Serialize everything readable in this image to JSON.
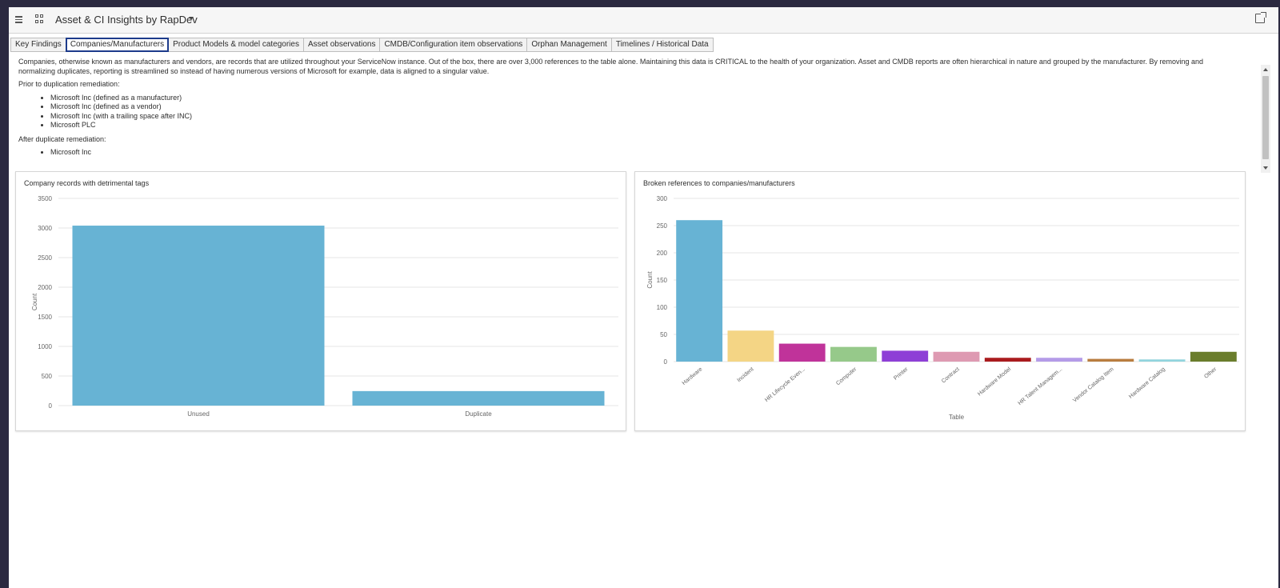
{
  "header": {
    "app_title": "Asset & CI Insights by RapDev"
  },
  "tabs": [
    {
      "label": "Key Findings",
      "active": false
    },
    {
      "label": "Companies/Manufacturers",
      "active": true
    },
    {
      "label": "Product Models & model categories",
      "active": false
    },
    {
      "label": "Asset observations",
      "active": false
    },
    {
      "label": "CMDB/Configuration item observations",
      "active": false
    },
    {
      "label": "Orphan Management",
      "active": false
    },
    {
      "label": "Timelines / Historical Data",
      "active": false
    }
  ],
  "intro": {
    "paragraph": "Companies, otherwise known as manufacturers and vendors, are records that are utilized throughout your ServiceNow instance. Out of the box, there are over 3,000 references to the table alone. Maintaining this data is CRITICAL to the health of your organization. Asset and CMDB reports are often hierarchical in nature and grouped by the manufacturer. By removing and normalizing duplicates, reporting is streamlined so instead of having numerous versions of Microsoft for example, data is aligned to a singular value.",
    "before_heading": "Prior to duplication remediation:",
    "before_items": [
      "Microsoft Inc (defined as a manufacturer)",
      "Microsoft Inc (defined as a vendor)",
      "Microsoft Inc  (with a trailing space after INC)",
      "Microsoft PLC"
    ],
    "after_heading": "After duplicate remediation:",
    "after_items": [
      "Microsoft Inc"
    ]
  },
  "chart_data": [
    {
      "type": "bar",
      "title": "Company records with detrimental tags",
      "categories": [
        "Unused",
        "Duplicate"
      ],
      "values": [
        3040,
        245
      ],
      "xlabel": "",
      "ylabel": "Count",
      "ylim": [
        0,
        3500
      ],
      "yticks": [
        0,
        500,
        1000,
        1500,
        2000,
        2500,
        3000,
        3500
      ],
      "colors": [
        "#67b3d4",
        "#67b3d4"
      ],
      "grid": true
    },
    {
      "type": "bar",
      "title": "Broken references to companies/manufacturers",
      "categories": [
        "Hardware",
        "Incident",
        "HR Lifecycle Even...",
        "Computer",
        "Printer",
        "Contract",
        "Hardware Model",
        "HR Talent Managem...",
        "Vendor Catalog Item",
        "Hardware Catalog",
        "Other"
      ],
      "values": [
        260,
        57,
        33,
        27,
        20,
        18,
        7,
        7,
        5,
        4,
        18
      ],
      "xlabel": "Table",
      "ylabel": "Count",
      "ylim": [
        0,
        300
      ],
      "yticks": [
        0,
        50,
        100,
        150,
        200,
        250,
        300
      ],
      "colors": [
        "#67b3d4",
        "#f4d585",
        "#c0339a",
        "#96c98a",
        "#8e3fd6",
        "#de9ab2",
        "#aa1b1e",
        "#b49be8",
        "#b97d3f",
        "#91d4dd",
        "#6a7d2c"
      ],
      "grid": true
    }
  ]
}
